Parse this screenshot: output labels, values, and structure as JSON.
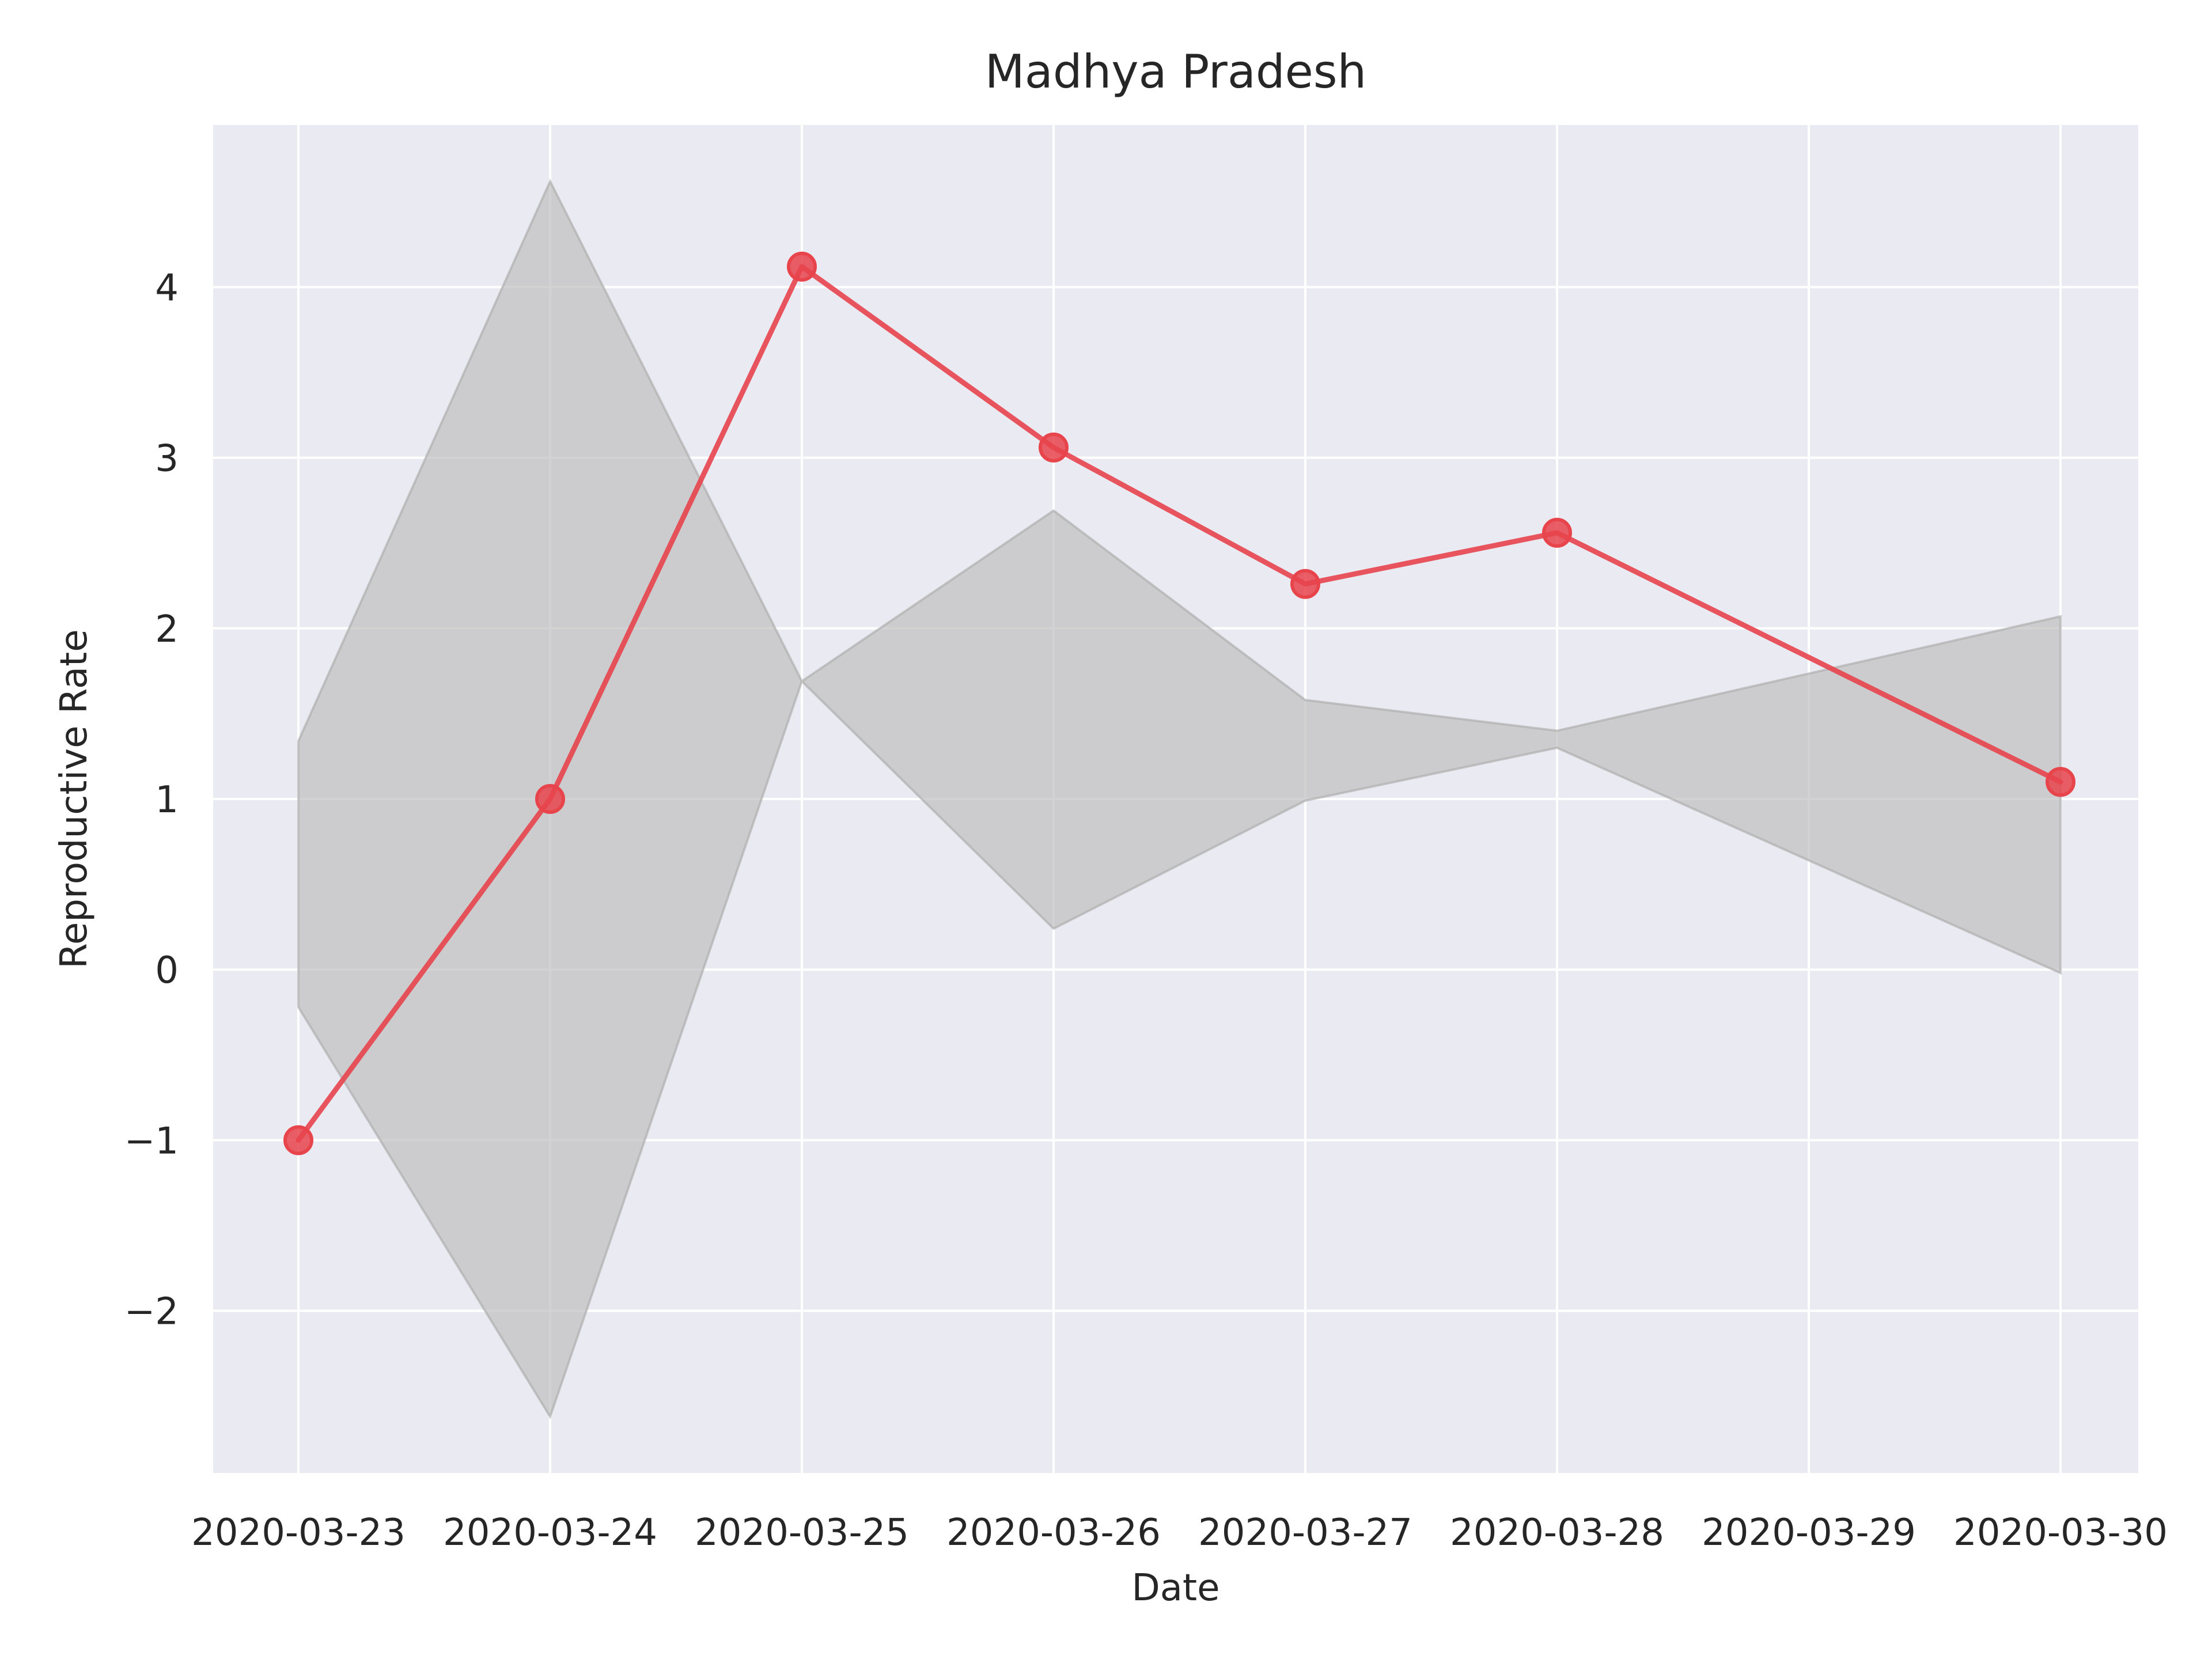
{
  "chart_data": {
    "type": "line",
    "title": "Madhya Pradesh",
    "xlabel": "Date",
    "ylabel": "Reproductive Rate",
    "x": [
      "2020-03-23",
      "2020-03-24",
      "2020-03-25",
      "2020-03-26",
      "2020-03-27",
      "2020-03-28",
      "2020-03-29",
      "2020-03-30"
    ],
    "x_ticks": [
      "2020-03-23",
      "2020-03-24",
      "2020-03-25",
      "2020-03-26",
      "2020-03-27",
      "2020-03-28",
      "2020-03-29",
      "2020-03-30"
    ],
    "y_ticks": [
      -2,
      -1,
      0,
      1,
      2,
      3,
      4
    ],
    "y_tick_labels": [
      "−2",
      "−1",
      "0",
      "1",
      "2",
      "3",
      "4"
    ],
    "ylim": [
      -2.95,
      4.95
    ],
    "grid": true,
    "series": [
      {
        "points": [
          {
            "x": "2020-03-23",
            "y": -1.0
          },
          {
            "x": "2020-03-24",
            "y": 1.0
          },
          {
            "x": "2020-03-25",
            "y": 4.12
          },
          {
            "x": "2020-03-26",
            "y": 3.06
          },
          {
            "x": "2020-03-27",
            "y": 2.26
          },
          {
            "x": "2020-03-28",
            "y": 2.56
          },
          {
            "x": "2020-03-30",
            "y": 1.1
          }
        ],
        "color": "#e8444c"
      }
    ],
    "band": {
      "color": "#bfbfbf",
      "points": [
        {
          "x": "2020-03-23",
          "lower": -0.22,
          "upper": 1.34
        },
        {
          "x": "2020-03-24",
          "lower": -2.62,
          "upper": 4.62
        },
        {
          "x": "2020-03-25",
          "lower": 1.69,
          "upper": 1.69
        },
        {
          "x": "2020-03-26",
          "lower": 0.24,
          "upper": 2.69
        },
        {
          "x": "2020-03-27",
          "lower": 0.99,
          "upper": 1.58
        },
        {
          "x": "2020-03-28",
          "lower": 1.3,
          "upper": 1.4
        },
        {
          "x": "2020-03-30",
          "lower": -0.02,
          "upper": 2.07
        }
      ]
    },
    "colors": {
      "plot_background": "#eaeaf2",
      "grid": "#ffffff",
      "text": "#262626"
    }
  }
}
